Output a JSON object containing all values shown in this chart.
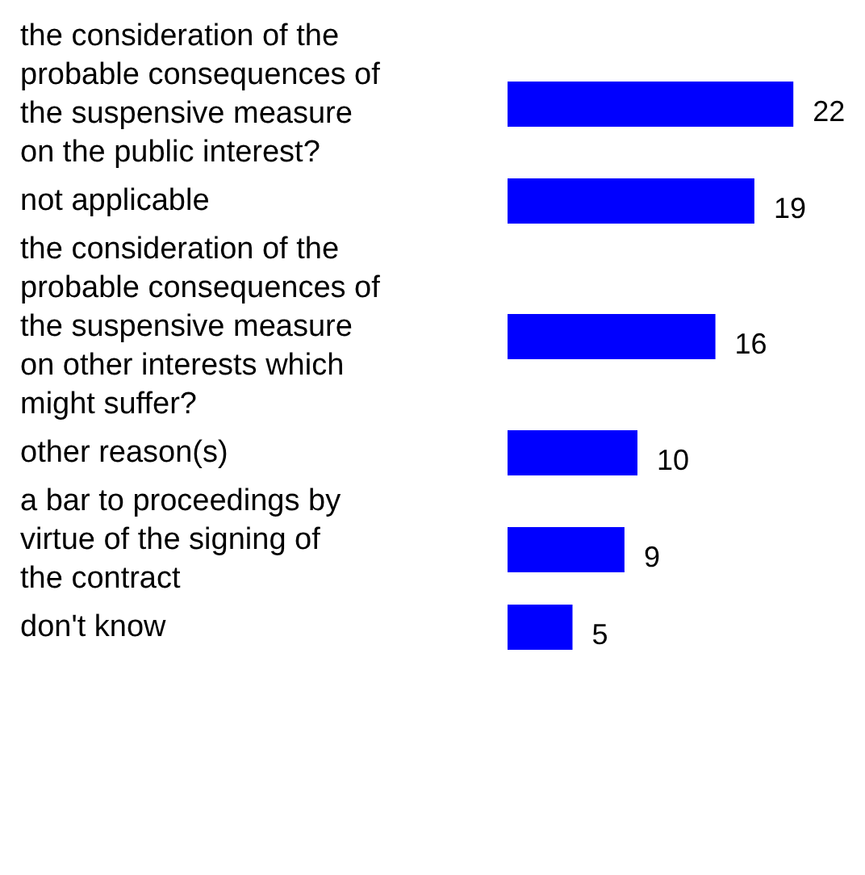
{
  "chart_data": {
    "type": "bar",
    "orientation": "horizontal",
    "data_labels": true,
    "color": "#0000ff",
    "categories": [
      "the consideration of the probable consequences of the suspensive measure on the public interest?",
      "not applicable",
      "the consideration of the probable consequences of the suspensive measure on other interests which might suffer?",
      "other reason(s)",
      "a bar to proceedings by virtue of the signing of the contract",
      "don't know"
    ],
    "values": [
      22,
      19,
      16,
      10,
      9,
      5
    ]
  }
}
